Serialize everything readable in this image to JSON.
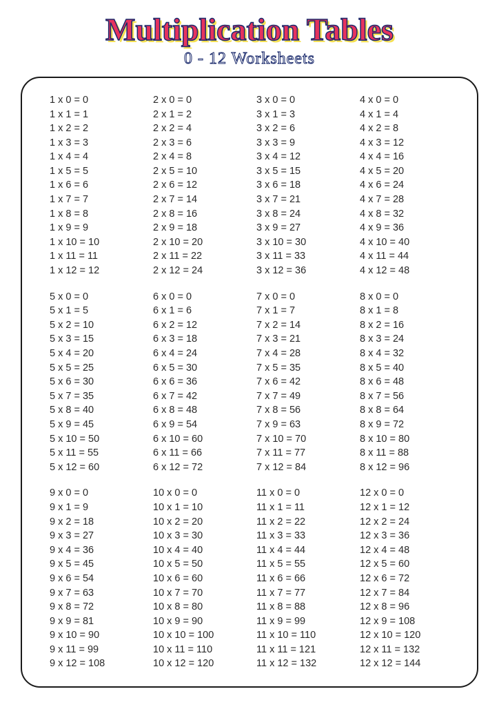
{
  "title": "Multiplication Tables",
  "subtitle": "0 - 12 Worksheets",
  "style": {
    "title_color": "#e6335e",
    "title_stroke": "#1a2a6c",
    "title_shadow": "#f5e050",
    "title_fontsize": 46,
    "subtitle_fontsize": 24,
    "subtitle_stroke": "#1a2a6c",
    "frame_border_color": "#1a1a1a",
    "frame_border_radius": 28,
    "frame_border_width": 2.5,
    "eq_fontsize": 14.5,
    "eq_color": "#2a2a2a",
    "background": "#ffffff"
  },
  "layout": {
    "rows": 3,
    "cols": 4,
    "multiplicand_range": [
      0,
      12
    ]
  },
  "groups": [
    [
      1,
      2,
      3,
      4
    ],
    [
      5,
      6,
      7,
      8
    ],
    [
      9,
      10,
      11,
      12
    ]
  ]
}
